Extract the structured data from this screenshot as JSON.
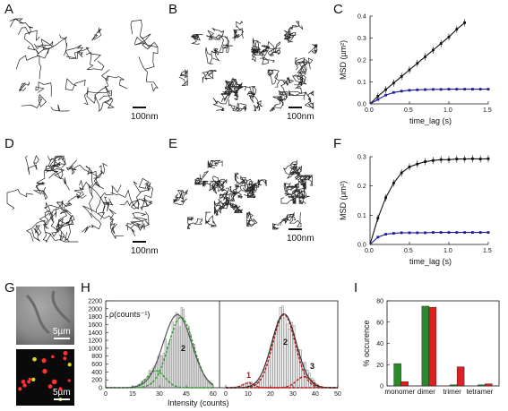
{
  "panels": {
    "A": {
      "label": "A",
      "scale": "100nm"
    },
    "B": {
      "label": "B",
      "scale": "100nm"
    },
    "C": {
      "label": "C"
    },
    "D": {
      "label": "D",
      "scale": "100nm"
    },
    "E": {
      "label": "E",
      "scale": "100nm"
    },
    "F": {
      "label": "F"
    },
    "G": {
      "label": "G",
      "scale_top": "5µm",
      "scale_bottom": "5µm"
    },
    "H": {
      "label": "H",
      "ylabel": "ρ(counts⁻¹)",
      "xlabel": "Intensity (counts)",
      "peaks_left": [
        "2"
      ],
      "peaks_right": [
        "1",
        "2",
        "3"
      ]
    },
    "I": {
      "label": "I"
    }
  },
  "colors": {
    "fast": "#111111",
    "slow": "#1a1aa0",
    "green": "#2a8a2a",
    "red": "#e02020",
    "hist_bar": "#999999"
  },
  "chart_data": [
    {
      "id": "C",
      "type": "line",
      "xlabel": "time_lag (s)",
      "ylabel": "MSD (µm²)",
      "xlim": [
        0,
        1.5
      ],
      "ylim": [
        0,
        0.4
      ],
      "xticks": [
        "0.0",
        "0.5",
        "1.0",
        "1.5"
      ],
      "yticks": [
        "0.0",
        "0.1",
        "0.2",
        "0.3",
        "0.4"
      ],
      "series": [
        {
          "color": "#111111",
          "x": [
            0.1,
            0.2,
            0.3,
            0.4,
            0.5,
            0.6,
            0.7,
            0.8,
            0.9,
            1.0,
            1.1,
            1.2
          ],
          "y": [
            0.035,
            0.065,
            0.095,
            0.125,
            0.155,
            0.185,
            0.215,
            0.245,
            0.275,
            0.305,
            0.34,
            0.37
          ]
        },
        {
          "color": "#1a1aa0",
          "x": [
            0.1,
            0.2,
            0.3,
            0.4,
            0.5,
            0.6,
            0.7,
            0.8,
            0.9,
            1.0,
            1.1,
            1.2,
            1.3,
            1.4,
            1.5
          ],
          "y": [
            0.02,
            0.04,
            0.052,
            0.058,
            0.062,
            0.064,
            0.065,
            0.066,
            0.066,
            0.067,
            0.067,
            0.067,
            0.067,
            0.067,
            0.067
          ]
        }
      ]
    },
    {
      "id": "F",
      "type": "line",
      "xlabel": "time_lag (s)",
      "ylabel": "MSD (µm²)",
      "xlim": [
        0,
        1.5
      ],
      "ylim": [
        0,
        0.3
      ],
      "xticks": [
        "0.0",
        "0.5",
        "1.0",
        "1.5"
      ],
      "yticks": [
        "0.0",
        "0.1",
        "0.2",
        "0.3"
      ],
      "series": [
        {
          "color": "#111111",
          "x": [
            0.1,
            0.2,
            0.3,
            0.4,
            0.5,
            0.6,
            0.7,
            0.8,
            0.9,
            1.0,
            1.1,
            1.2,
            1.3,
            1.4,
            1.5
          ],
          "y": [
            0.09,
            0.16,
            0.21,
            0.245,
            0.265,
            0.275,
            0.283,
            0.287,
            0.29,
            0.29,
            0.292,
            0.292,
            0.293,
            0.292,
            0.293
          ]
        },
        {
          "color": "#1a1aa0",
          "x": [
            0.1,
            0.2,
            0.3,
            0.4,
            0.5,
            0.6,
            0.7,
            0.8,
            0.9,
            1.0,
            1.1,
            1.2,
            1.3,
            1.4,
            1.5
          ],
          "y": [
            0.025,
            0.035,
            0.038,
            0.04,
            0.04,
            0.04,
            0.04,
            0.041,
            0.041,
            0.041,
            0.041,
            0.041,
            0.041,
            0.041,
            0.041
          ]
        }
      ]
    },
    {
      "id": "H-left",
      "type": "bar",
      "xlim": [
        0,
        60
      ],
      "ylim": [
        0,
        2200
      ],
      "xticks": [
        "0",
        "15",
        "30",
        "45",
        "60"
      ],
      "yticks": [
        "0",
        "200",
        "400",
        "600",
        "800",
        "1000",
        "1200",
        "1400",
        "1600",
        "1800",
        "2000",
        "2200"
      ],
      "fits": [
        {
          "mu": 28,
          "sigma": 5,
          "amp": 430
        },
        {
          "mu": 42,
          "sigma": 7,
          "amp": 1780
        },
        {
          "mu": 40,
          "sigma": 8,
          "amp": 1850
        }
      ]
    },
    {
      "id": "H-right",
      "type": "bar",
      "xlim": [
        0,
        50
      ],
      "xticks": [
        "0",
        "10",
        "20",
        "30",
        "40",
        "50"
      ],
      "fits": [
        {
          "mu": 10,
          "sigma": 2.5,
          "amp": 120
        },
        {
          "mu": 26,
          "sigma": 5,
          "amp": 1850
        },
        {
          "mu": 35,
          "sigma": 3.5,
          "amp": 280
        },
        {
          "mu": 26,
          "sigma": 5.5,
          "amp": 1870
        }
      ]
    },
    {
      "id": "I",
      "type": "bar",
      "ylabel": "% occurence",
      "ylim": [
        0,
        80
      ],
      "yticks": [
        "0",
        "20",
        "40",
        "60",
        "80"
      ],
      "categories": [
        "monomer",
        "dimer",
        "trimer",
        "tetramer"
      ],
      "series": [
        {
          "color": "#2a8a2a",
          "values": [
            21,
            75,
            1,
            1
          ]
        },
        {
          "color": "#e02020",
          "values": [
            4,
            74,
            18,
            2
          ]
        }
      ]
    }
  ]
}
